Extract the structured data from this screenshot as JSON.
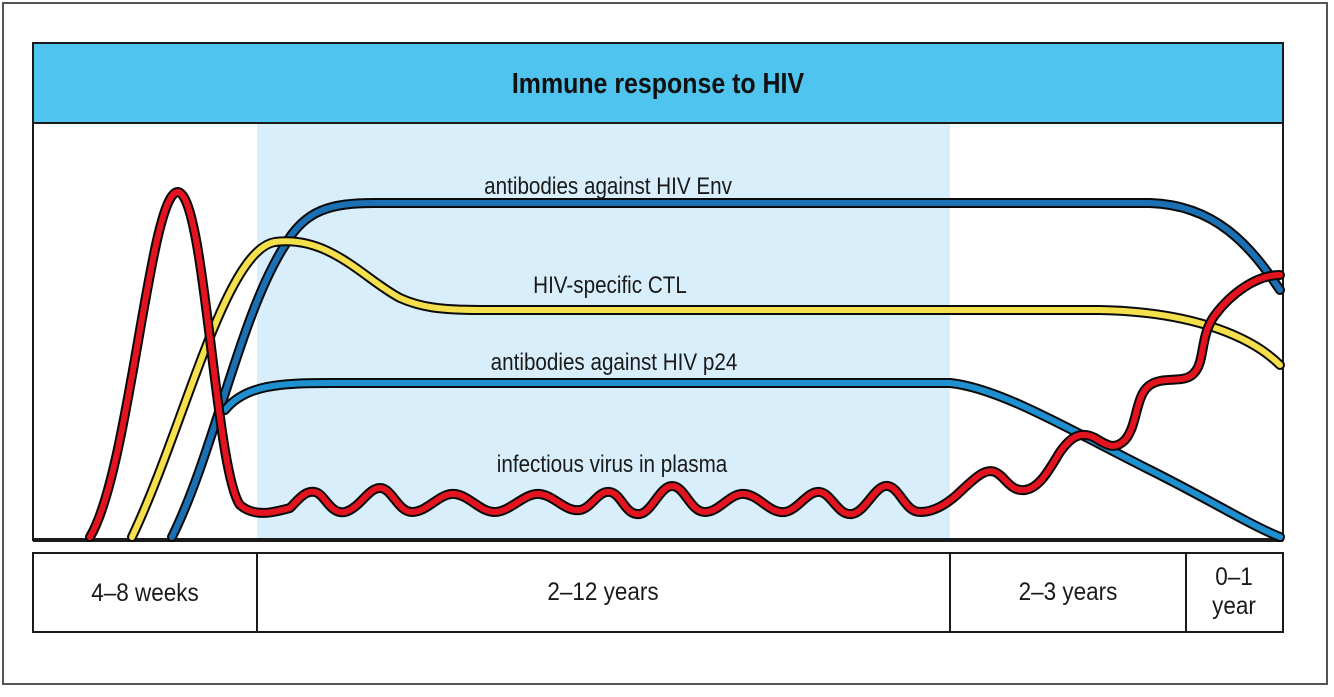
{
  "title": "Immune response to HIV",
  "curves": {
    "env": {
      "label": "antibodies against HIV Env",
      "color": "#1b6fb3"
    },
    "ctl": {
      "label": "HIV-specific CTL",
      "color": "#f4e04d"
    },
    "p24": {
      "label": "antibodies against HIV p24",
      "color": "#1e90d0"
    },
    "virus": {
      "label": "infectious virus in plasma",
      "color": "#e3141f"
    }
  },
  "time_segments": [
    {
      "label": "4–8 weeks"
    },
    {
      "label": "2–12 years"
    },
    {
      "label": "2–3 years"
    },
    {
      "label_line1": "0–1",
      "label_line2": "year"
    }
  ],
  "colors": {
    "title_bar": "#4ec4ee",
    "latency_shade": "#d8eefa",
    "frame": "#1a1a1a"
  }
}
